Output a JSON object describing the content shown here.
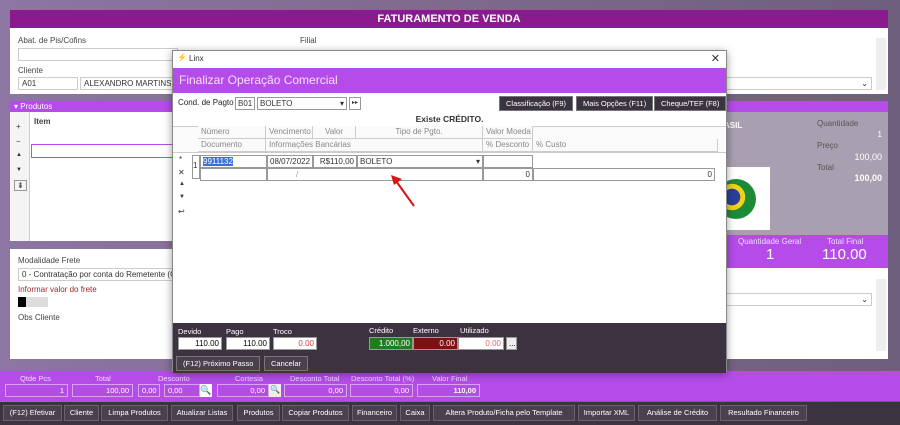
{
  "header": {
    "title": "FATURAMENTO DE VENDA"
  },
  "top": {
    "abat_label": "Abat. de Pis/Cofins",
    "filial_label": "Filial",
    "cliente_label": "Cliente",
    "cliente_code": "A01",
    "cliente_name": "ALEXANDRO MARTINS"
  },
  "produtos": {
    "title": "Produtos",
    "item_col": "Item",
    "tools": [
      "+",
      "−",
      "▲",
      "▼",
      "⇟"
    ]
  },
  "product_card": {
    "name_partial": "ASIL",
    "quantidade_label": "Quantidade",
    "quantidade": "1",
    "preco_label": "Preço",
    "preco": "100,00",
    "total_label": "Total",
    "total": "100,00",
    "qtd_geral_label": "Quantidade Geral",
    "qtd_geral": "1",
    "total_final_label": "Total Final",
    "total_final": "110.00"
  },
  "frete": {
    "modalidade_label": "Modalidade Frete",
    "modalidade_value": "0 - Contratação por conta do Remetente (CIF",
    "informar_label": "Informar valor do frete",
    "obs_label": "Obs Cliente"
  },
  "dialog": {
    "window_title": "Linx",
    "header": "Finalizar Operação Comercial",
    "cond_label": "Cond. de Pagto",
    "cond_code": "B01",
    "cond_value": "BOLETO",
    "buttons": {
      "classificacao": "Classificação (F9)",
      "mais_opcoes": "Mais Opções (F11)",
      "cheque": "Cheque/TEF (F8)"
    },
    "status": "Existe CRÉDITO.",
    "columns_row1": [
      "Número",
      "Vencimento",
      "Valor",
      "Tipo de Pgto.",
      "Valor Moeda"
    ],
    "columns_row2": [
      "Documento",
      "Informações Bancárias",
      "% Desconto",
      "% Custo"
    ],
    "row": {
      "index": "1",
      "numero": "9911132",
      "vencimento": "08/07/2022",
      "valor": "R$110,00",
      "tipo": "BOLETO",
      "info_bancaria": "/",
      "desconto": "0",
      "custo": "0"
    },
    "footer": {
      "devido_label": "Devido",
      "devido": "110.00",
      "pago_label": "Pago",
      "pago": "110.00",
      "troco_label": "Troco",
      "troco": "0.00",
      "credito_label": "Crédito",
      "credito": "1.000,00",
      "externo_label": "Externo",
      "externo": "0.00",
      "utilizado_label": "Utilizado",
      "utilizado": "0.00",
      "more": "...",
      "next": "(F12) Próximo Passo",
      "cancel": "Cancelar"
    }
  },
  "totals": {
    "labels": [
      "Qtde Pcs",
      "Total",
      "Desconto",
      "Cortesia",
      "Desconto Total",
      "Desconto Total (%)",
      "Valor Final"
    ],
    "qtde": "1",
    "total": "100,00",
    "desc1": "0,00",
    "desc2": "0,00",
    "cortesia": "0,00",
    "desc_total": "0,00",
    "desc_total_pct": "0,00",
    "valor_final": "110,00"
  },
  "toolbar": [
    "(F12) Efetivar",
    "Cliente",
    "Limpa Produtos",
    "Atualizar Listas",
    "Produtos",
    "Copiar Produtos",
    "Financeiro",
    "Caixa",
    "Altera Produto/Ficha pelo Template",
    "Importar XML",
    "Análise de Crédito",
    "Resultado Financeiro"
  ],
  "colors": {
    "purple": "#b54ce9",
    "header": "#8b1a8f",
    "dark": "#3d3340",
    "credit_green": "#1e7d1e",
    "external_red": "#7d1010"
  }
}
